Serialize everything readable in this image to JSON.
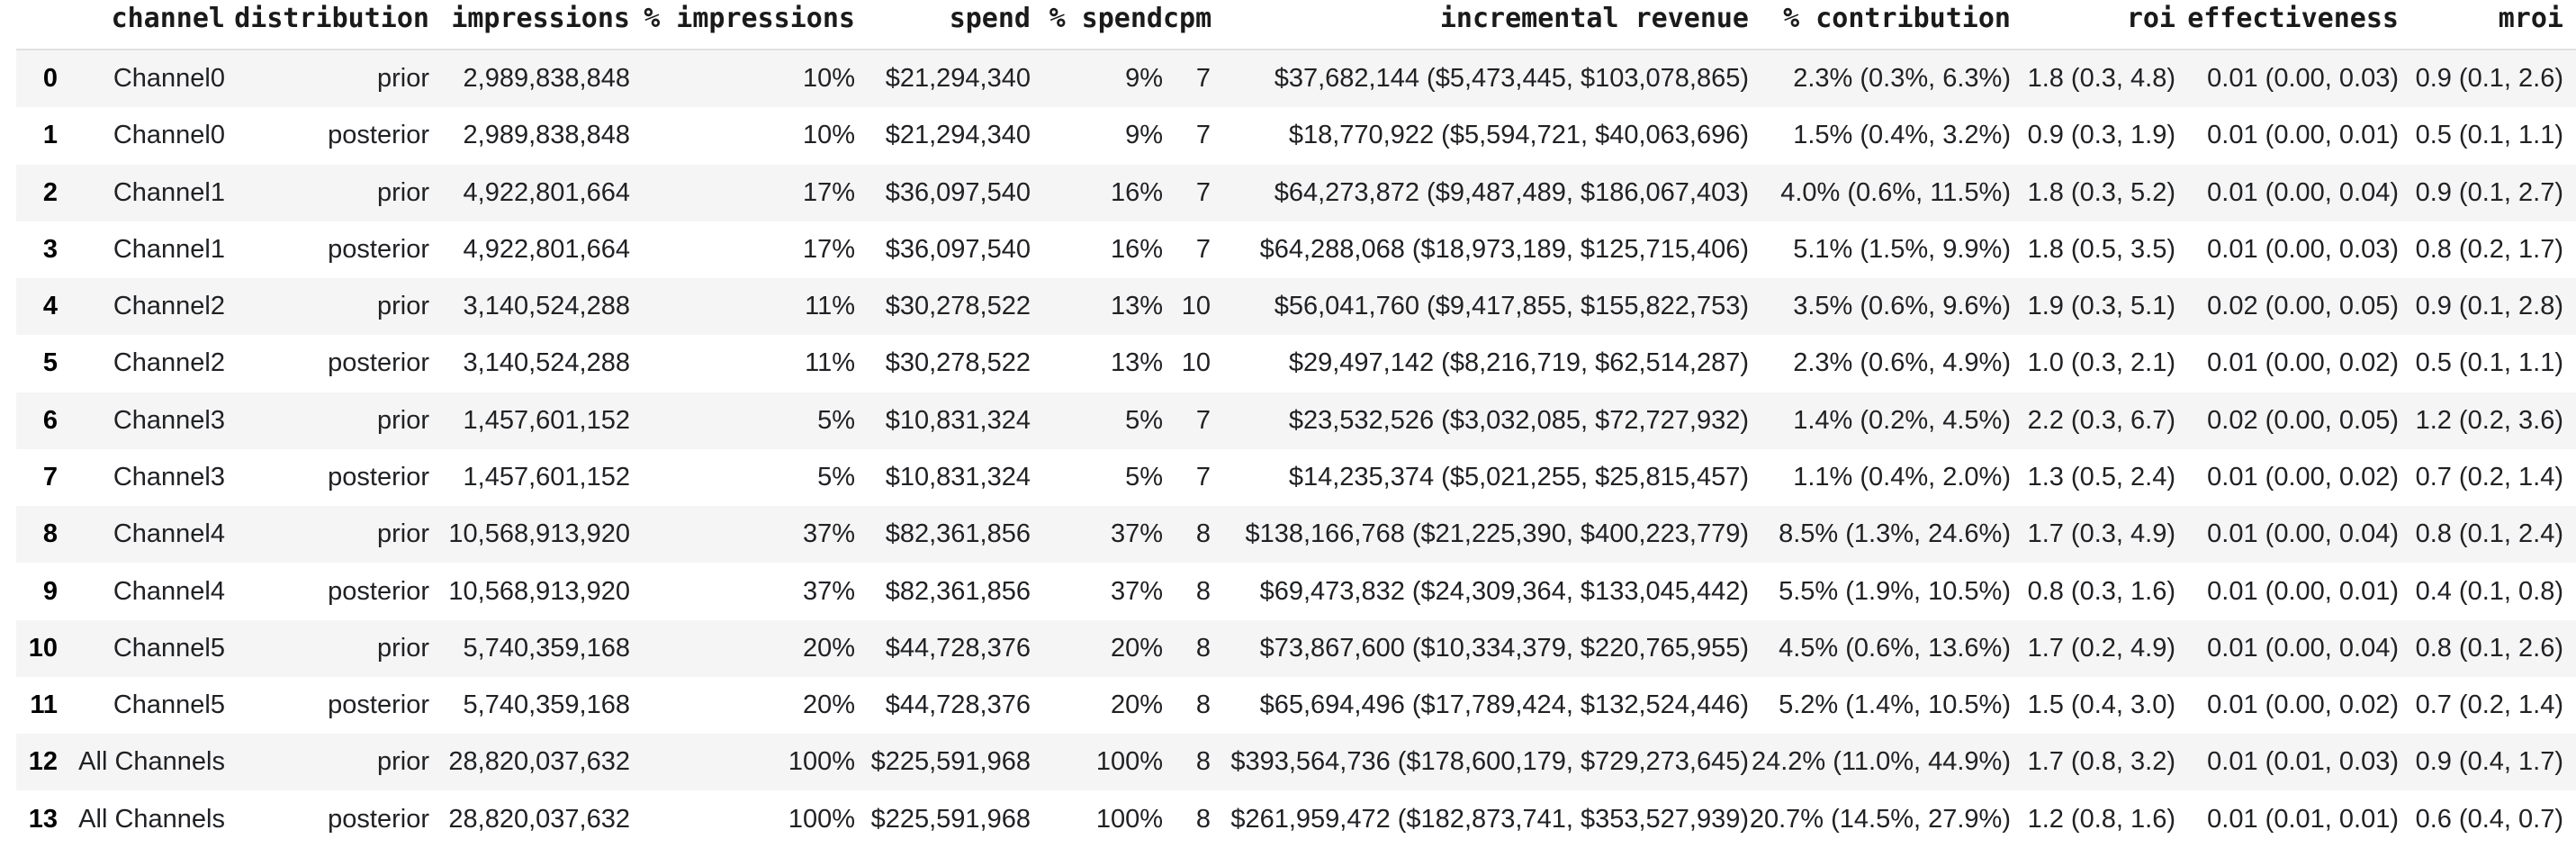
{
  "colors": {
    "stripe_row_background": "#f5f5f5",
    "header_border": "#e0e0e0",
    "body_text": "#202124",
    "page_background": "#ffffff"
  },
  "chart_data": {
    "type": "table",
    "title": "",
    "columns": [
      "",
      "channel",
      "distribution",
      "impressions",
      "% impressions",
      "spend",
      "% spend",
      "cpm",
      "incremental revenue",
      "% contribution",
      "roi",
      "effectiveness",
      "mroi"
    ],
    "rows": [
      [
        "0",
        "Channel0",
        "prior",
        "2,989,838,848",
        "10%",
        "$21,294,340",
        "9%",
        "7",
        "$37,682,144 ($5,473,445, $103,078,865)",
        "2.3% (0.3%, 6.3%)",
        "1.8 (0.3, 4.8)",
        "0.01 (0.00, 0.03)",
        "0.9 (0.1, 2.6)"
      ],
      [
        "1",
        "Channel0",
        "posterior",
        "2,989,838,848",
        "10%",
        "$21,294,340",
        "9%",
        "7",
        "$18,770,922 ($5,594,721, $40,063,696)",
        "1.5% (0.4%, 3.2%)",
        "0.9 (0.3, 1.9)",
        "0.01 (0.00, 0.01)",
        "0.5 (0.1, 1.1)"
      ],
      [
        "2",
        "Channel1",
        "prior",
        "4,922,801,664",
        "17%",
        "$36,097,540",
        "16%",
        "7",
        "$64,273,872 ($9,487,489, $186,067,403)",
        "4.0% (0.6%, 11.5%)",
        "1.8 (0.3, 5.2)",
        "0.01 (0.00, 0.04)",
        "0.9 (0.1, 2.7)"
      ],
      [
        "3",
        "Channel1",
        "posterior",
        "4,922,801,664",
        "17%",
        "$36,097,540",
        "16%",
        "7",
        "$64,288,068 ($18,973,189, $125,715,406)",
        "5.1% (1.5%, 9.9%)",
        "1.8 (0.5, 3.5)",
        "0.01 (0.00, 0.03)",
        "0.8 (0.2, 1.7)"
      ],
      [
        "4",
        "Channel2",
        "prior",
        "3,140,524,288",
        "11%",
        "$30,278,522",
        "13%",
        "10",
        "$56,041,760 ($9,417,855, $155,822,753)",
        "3.5% (0.6%, 9.6%)",
        "1.9 (0.3, 5.1)",
        "0.02 (0.00, 0.05)",
        "0.9 (0.1, 2.8)"
      ],
      [
        "5",
        "Channel2",
        "posterior",
        "3,140,524,288",
        "11%",
        "$30,278,522",
        "13%",
        "10",
        "$29,497,142 ($8,216,719, $62,514,287)",
        "2.3% (0.6%, 4.9%)",
        "1.0 (0.3, 2.1)",
        "0.01 (0.00, 0.02)",
        "0.5 (0.1, 1.1)"
      ],
      [
        "6",
        "Channel3",
        "prior",
        "1,457,601,152",
        "5%",
        "$10,831,324",
        "5%",
        "7",
        "$23,532,526 ($3,032,085, $72,727,932)",
        "1.4% (0.2%, 4.5%)",
        "2.2 (0.3, 6.7)",
        "0.02 (0.00, 0.05)",
        "1.2 (0.2, 3.6)"
      ],
      [
        "7",
        "Channel3",
        "posterior",
        "1,457,601,152",
        "5%",
        "$10,831,324",
        "5%",
        "7",
        "$14,235,374 ($5,021,255, $25,815,457)",
        "1.1% (0.4%, 2.0%)",
        "1.3 (0.5, 2.4)",
        "0.01 (0.00, 0.02)",
        "0.7 (0.2, 1.4)"
      ],
      [
        "8",
        "Channel4",
        "prior",
        "10,568,913,920",
        "37%",
        "$82,361,856",
        "37%",
        "8",
        "$138,166,768 ($21,225,390, $400,223,779)",
        "8.5% (1.3%, 24.6%)",
        "1.7 (0.3, 4.9)",
        "0.01 (0.00, 0.04)",
        "0.8 (0.1, 2.4)"
      ],
      [
        "9",
        "Channel4",
        "posterior",
        "10,568,913,920",
        "37%",
        "$82,361,856",
        "37%",
        "8",
        "$69,473,832 ($24,309,364, $133,045,442)",
        "5.5% (1.9%, 10.5%)",
        "0.8 (0.3, 1.6)",
        "0.01 (0.00, 0.01)",
        "0.4 (0.1, 0.8)"
      ],
      [
        "10",
        "Channel5",
        "prior",
        "5,740,359,168",
        "20%",
        "$44,728,376",
        "20%",
        "8",
        "$73,867,600 ($10,334,379, $220,765,955)",
        "4.5% (0.6%, 13.6%)",
        "1.7 (0.2, 4.9)",
        "0.01 (0.00, 0.04)",
        "0.8 (0.1, 2.6)"
      ],
      [
        "11",
        "Channel5",
        "posterior",
        "5,740,359,168",
        "20%",
        "$44,728,376",
        "20%",
        "8",
        "$65,694,496 ($17,789,424, $132,524,446)",
        "5.2% (1.4%, 10.5%)",
        "1.5 (0.4, 3.0)",
        "0.01 (0.00, 0.02)",
        "0.7 (0.2, 1.4)"
      ],
      [
        "12",
        "All Channels",
        "prior",
        "28,820,037,632",
        "100%",
        "$225,591,968",
        "100%",
        "8",
        "$393,564,736 ($178,600,179, $729,273,645)",
        "24.2% (11.0%, 44.9%)",
        "1.7 (0.8, 3.2)",
        "0.01 (0.01, 0.03)",
        "0.9 (0.4, 1.7)"
      ],
      [
        "13",
        "All Channels",
        "posterior",
        "28,820,037,632",
        "100%",
        "$225,591,968",
        "100%",
        "8",
        "$261,959,472 ($182,873,741, $353,527,939)",
        "20.7% (14.5%, 27.9%)",
        "1.2 (0.8, 1.6)",
        "0.01 (0.01, 0.01)",
        "0.6 (0.4, 0.7)"
      ]
    ]
  }
}
